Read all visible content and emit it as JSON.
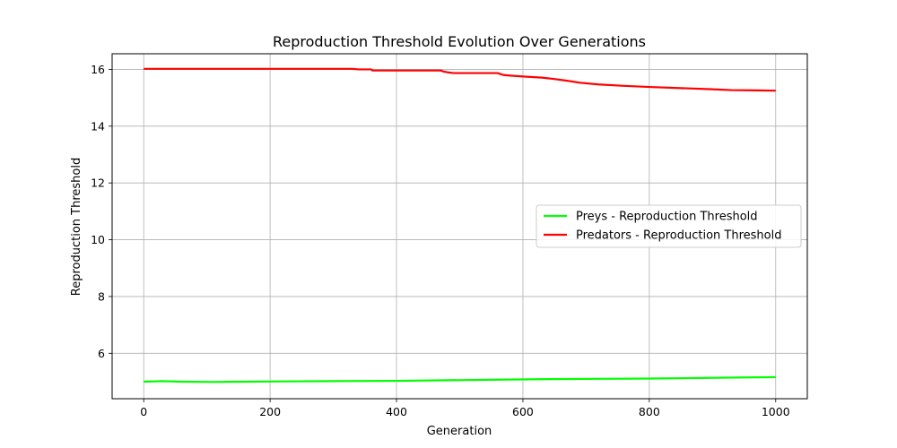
{
  "chart_data": {
    "type": "line",
    "title": "Reproduction Threshold Evolution Over Generations",
    "xlabel": "Generation",
    "ylabel": "Reproduction Threshold",
    "xlim": [
      -50,
      1050
    ],
    "ylim": [
      4.4,
      16.55
    ],
    "xticks": [
      0,
      200,
      400,
      600,
      800,
      1000
    ],
    "yticks": [
      6,
      8,
      10,
      12,
      14,
      16
    ],
    "grid": true,
    "legend_position": "center-right",
    "series": [
      {
        "name": "Preys - Reproduction Threshold",
        "color": "#00ff00",
        "x": [
          0,
          30,
          60,
          110,
          160,
          220,
          300,
          400,
          480,
          560,
          640,
          720,
          800,
          880,
          950,
          1000
        ],
        "values": [
          5.0,
          5.02,
          5.0,
          4.99,
          5.0,
          5.01,
          5.02,
          5.03,
          5.05,
          5.07,
          5.09,
          5.1,
          5.11,
          5.13,
          5.15,
          5.16
        ]
      },
      {
        "name": "Predators - Reproduction Threshold",
        "color": "#ff0000",
        "x": [
          0,
          100,
          200,
          330,
          340,
          360,
          362,
          420,
          470,
          475,
          480,
          490,
          500,
          540,
          560,
          565,
          570,
          580,
          600,
          630,
          650,
          670,
          690,
          720,
          760,
          800,
          850,
          900,
          930,
          970,
          1000
        ],
        "values": [
          16.02,
          16.02,
          16.02,
          16.02,
          16.0,
          16.0,
          15.96,
          15.96,
          15.96,
          15.92,
          15.9,
          15.87,
          15.87,
          15.87,
          15.87,
          15.83,
          15.8,
          15.78,
          15.75,
          15.71,
          15.66,
          15.6,
          15.53,
          15.47,
          15.42,
          15.38,
          15.34,
          15.3,
          15.27,
          15.26,
          15.25
        ]
      }
    ]
  }
}
